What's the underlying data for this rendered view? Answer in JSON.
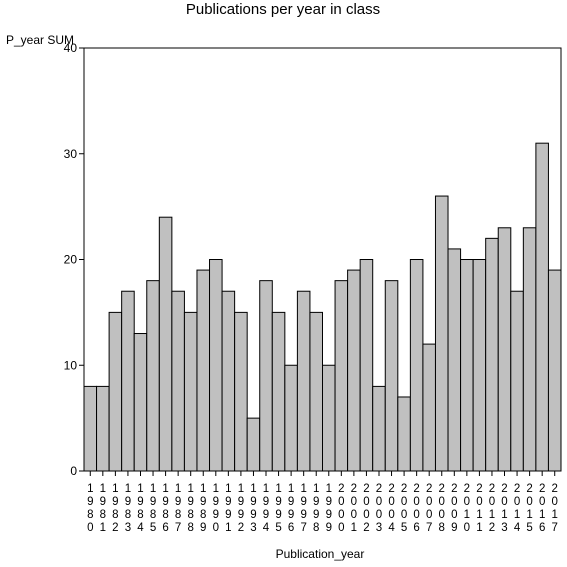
{
  "chart_data": {
    "type": "bar",
    "title": "Publications per year in class",
    "xlabel": "Publication_year",
    "ylabel": "P_year SUM",
    "ylim": [
      0,
      40
    ],
    "yticks": [
      0,
      10,
      20,
      30,
      40
    ],
    "categories": [
      "1980",
      "1981",
      "1982",
      "1983",
      "1984",
      "1985",
      "1986",
      "1987",
      "1988",
      "1989",
      "1990",
      "1991",
      "1992",
      "1993",
      "1994",
      "1995",
      "1996",
      "1997",
      "1998",
      "1999",
      "2000",
      "2001",
      "2002",
      "2003",
      "2004",
      "2005",
      "2006",
      "2007",
      "2008",
      "2009",
      "2010",
      "2011",
      "2012",
      "2013",
      "2014",
      "2015",
      "2016",
      "2017"
    ],
    "values": [
      8,
      8,
      15,
      17,
      13,
      18,
      24,
      17,
      15,
      19,
      20,
      17,
      15,
      5,
      18,
      15,
      10,
      17,
      15,
      10,
      18,
      19,
      20,
      8,
      18,
      7,
      20,
      12,
      26,
      21,
      20,
      20,
      22,
      23,
      17,
      23,
      31,
      19
    ],
    "bar_color": "#c0c0c0",
    "grid": false
  }
}
